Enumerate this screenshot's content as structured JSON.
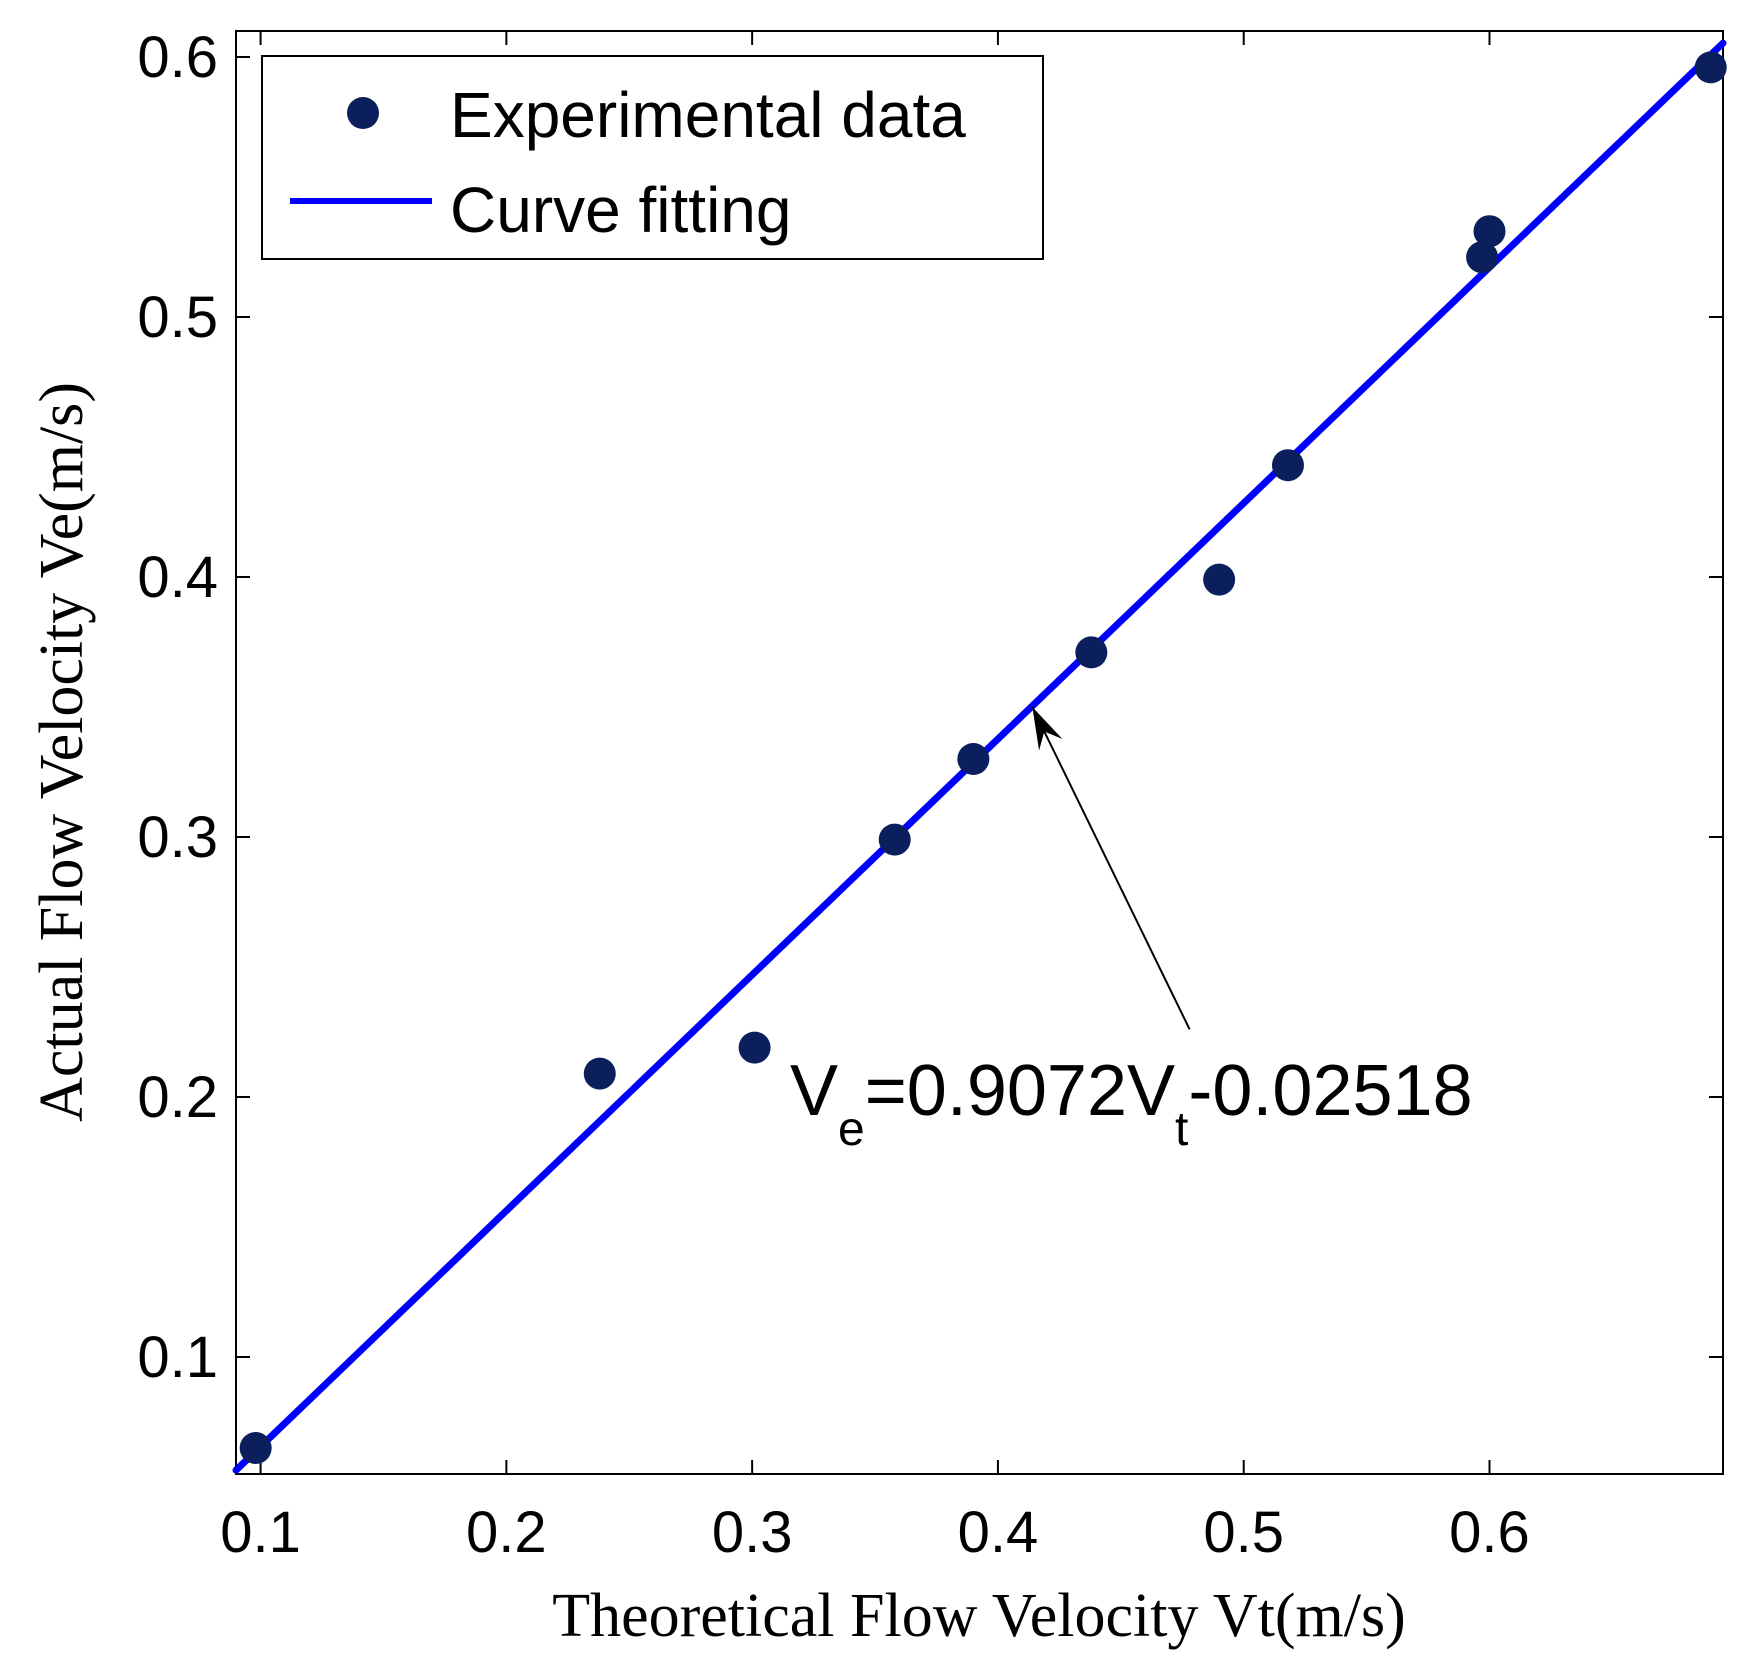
{
  "chart_data": {
    "type": "scatter",
    "xlabel": "Theoretical Flow Velocity Vt(m/s)",
    "ylabel": "Actual Flow Velocity Ve(m/s)",
    "xlim": [
      0.09,
      0.695
    ],
    "ylim": [
      0.055,
      0.61
    ],
    "xticks": [
      0.1,
      0.2,
      0.3,
      0.4,
      0.5,
      0.6
    ],
    "xtick_labels": [
      "0.1",
      "0.2",
      "0.3",
      "0.4",
      "0.5",
      "0.6"
    ],
    "yticks": [
      0.1,
      0.2,
      0.3,
      0.4,
      0.5,
      0.6
    ],
    "ytick_labels": [
      "0.1",
      "0.2",
      "0.3",
      "0.4",
      "0.5",
      "0.6"
    ],
    "grid": false,
    "legend_position": "top-left",
    "series": [
      {
        "name": "Experimental data",
        "kind": "scatter",
        "color": "#0a1f5c",
        "x": [
          0.098,
          0.238,
          0.301,
          0.358,
          0.39,
          0.438,
          0.49,
          0.518,
          0.597,
          0.6,
          0.69
        ],
        "y": [
          0.065,
          0.209,
          0.219,
          0.299,
          0.33,
          0.371,
          0.399,
          0.443,
          0.523,
          0.533,
          0.596
        ]
      },
      {
        "name": "Curve fitting",
        "kind": "line",
        "color": "#0000ff",
        "slope": 0.9072,
        "intercept": -0.02518,
        "x_range": [
          0.09,
          0.695
        ]
      }
    ],
    "annotation": {
      "base": "V",
      "sub1": "e",
      "mid": "=0.9072V",
      "sub2": "t",
      "tail": "-0.02518",
      "arrow_target": [
        0.414,
        0.35
      ],
      "arrow_tail": [
        0.478,
        0.226
      ]
    }
  }
}
